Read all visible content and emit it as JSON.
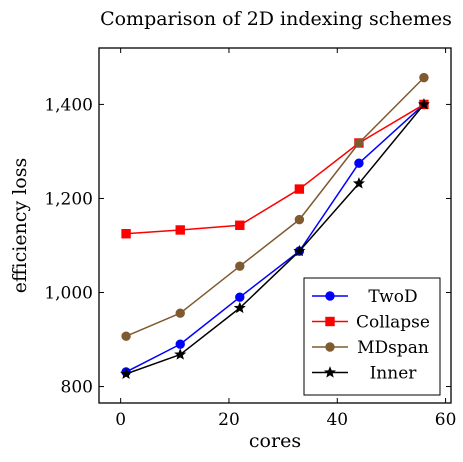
{
  "chart_data": {
    "type": "line",
    "title": "Comparison of 2D indexing schemes",
    "xlabel": "cores",
    "ylabel": "efficiency loss",
    "xlim": [
      -4,
      61
    ],
    "ylim": [
      765,
      1520
    ],
    "xticks": [
      0,
      20,
      40,
      60
    ],
    "xtick_labels": [
      "0",
      "20",
      "40",
      "60"
    ],
    "yticks": [
      800,
      1000,
      1200,
      1400
    ],
    "ytick_labels": [
      "800",
      "1,000",
      "1,200",
      "1,400"
    ],
    "grid": false,
    "legend_position": "bottom-right",
    "x": [
      1,
      11,
      22,
      33,
      44,
      56
    ],
    "series": [
      {
        "name": "TwoD",
        "values": [
          831,
          890,
          990,
          1088,
          1275,
          1400
        ],
        "color": "#0000ff",
        "marker": "circle"
      },
      {
        "name": "Collapse",
        "values": [
          1125,
          1133,
          1143,
          1220,
          1318,
          1400
        ],
        "color": "#ff0000",
        "marker": "square"
      },
      {
        "name": "MDspan",
        "values": [
          907,
          956,
          1056,
          1155,
          1318,
          1457
        ],
        "color": "#7f5a30",
        "marker": "circle"
      },
      {
        "name": "Inner",
        "values": [
          827,
          868,
          967,
          1088,
          1232,
          1400
        ],
        "color": "#000000",
        "marker": "star"
      }
    ]
  }
}
